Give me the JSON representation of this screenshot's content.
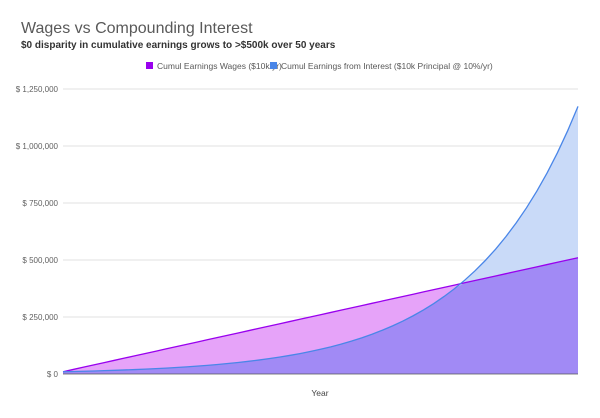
{
  "chart_data": {
    "type": "area",
    "title": "Wages vs Compounding Interest",
    "subtitle": "$0 disparity in cumulative earnings grows to >$500k over 50 years",
    "xlabel": "Year",
    "ylabel": "",
    "xlim": [
      0,
      50
    ],
    "ylim": [
      0,
      1250000
    ],
    "y_ticks": [
      {
        "value": 0,
        "label": "$ 0"
      },
      {
        "value": 250000,
        "label": "$ 250,000"
      },
      {
        "value": 500000,
        "label": "$ 500,000"
      },
      {
        "value": 750000,
        "label": "$ 750,000"
      },
      {
        "value": 1000000,
        "label": "$ 1,000,000"
      },
      {
        "value": 1250000,
        "label": "$ 1,250,000"
      }
    ],
    "grid": true,
    "legend_position": "top-center",
    "x": [
      0,
      1,
      2,
      3,
      4,
      5,
      6,
      7,
      8,
      9,
      10,
      11,
      12,
      13,
      14,
      15,
      16,
      17,
      18,
      19,
      20,
      21,
      22,
      23,
      24,
      25,
      26,
      27,
      28,
      29,
      30,
      31,
      32,
      33,
      34,
      35,
      36,
      37,
      38,
      39,
      40,
      41,
      42,
      43,
      44,
      45,
      46,
      47,
      48,
      49,
      50
    ],
    "series": [
      {
        "name": "Cumul Earnings Wages ($10k/yr)",
        "color": "#9900ee",
        "fill": "#e6a3f9",
        "values": [
          10000,
          20000,
          30000,
          40000,
          50000,
          60000,
          70000,
          80000,
          90000,
          100000,
          110000,
          120000,
          130000,
          140000,
          150000,
          160000,
          170000,
          180000,
          190000,
          200000,
          210000,
          220000,
          230000,
          240000,
          250000,
          260000,
          270000,
          280000,
          290000,
          300000,
          310000,
          320000,
          330000,
          340000,
          350000,
          360000,
          370000,
          380000,
          390000,
          400000,
          410000,
          420000,
          430000,
          440000,
          450000,
          460000,
          470000,
          480000,
          490000,
          500000,
          510000
        ]
      },
      {
        "name": "Cumul Earnings from Interest ($10k Principal @ 10%/yr)",
        "color": "#4a86e8",
        "fill": "#c9daf8",
        "values": [
          10000,
          11000,
          12100,
          13310,
          14641,
          16105,
          17716,
          19487,
          21436,
          23579,
          25937,
          28531,
          31384,
          34523,
          37975,
          41772,
          45950,
          50545,
          55599,
          61159,
          67275,
          74002,
          81403,
          89543,
          98497,
          108347,
          119182,
          131100,
          144210,
          158631,
          174494,
          191943,
          211138,
          232252,
          255477,
          281024,
          309127,
          340039,
          374043,
          411448,
          452593,
          497852,
          547637,
          602401,
          662641,
          728905,
          801795,
          881975,
          970172,
          1067190,
          1173909
        ]
      }
    ]
  }
}
